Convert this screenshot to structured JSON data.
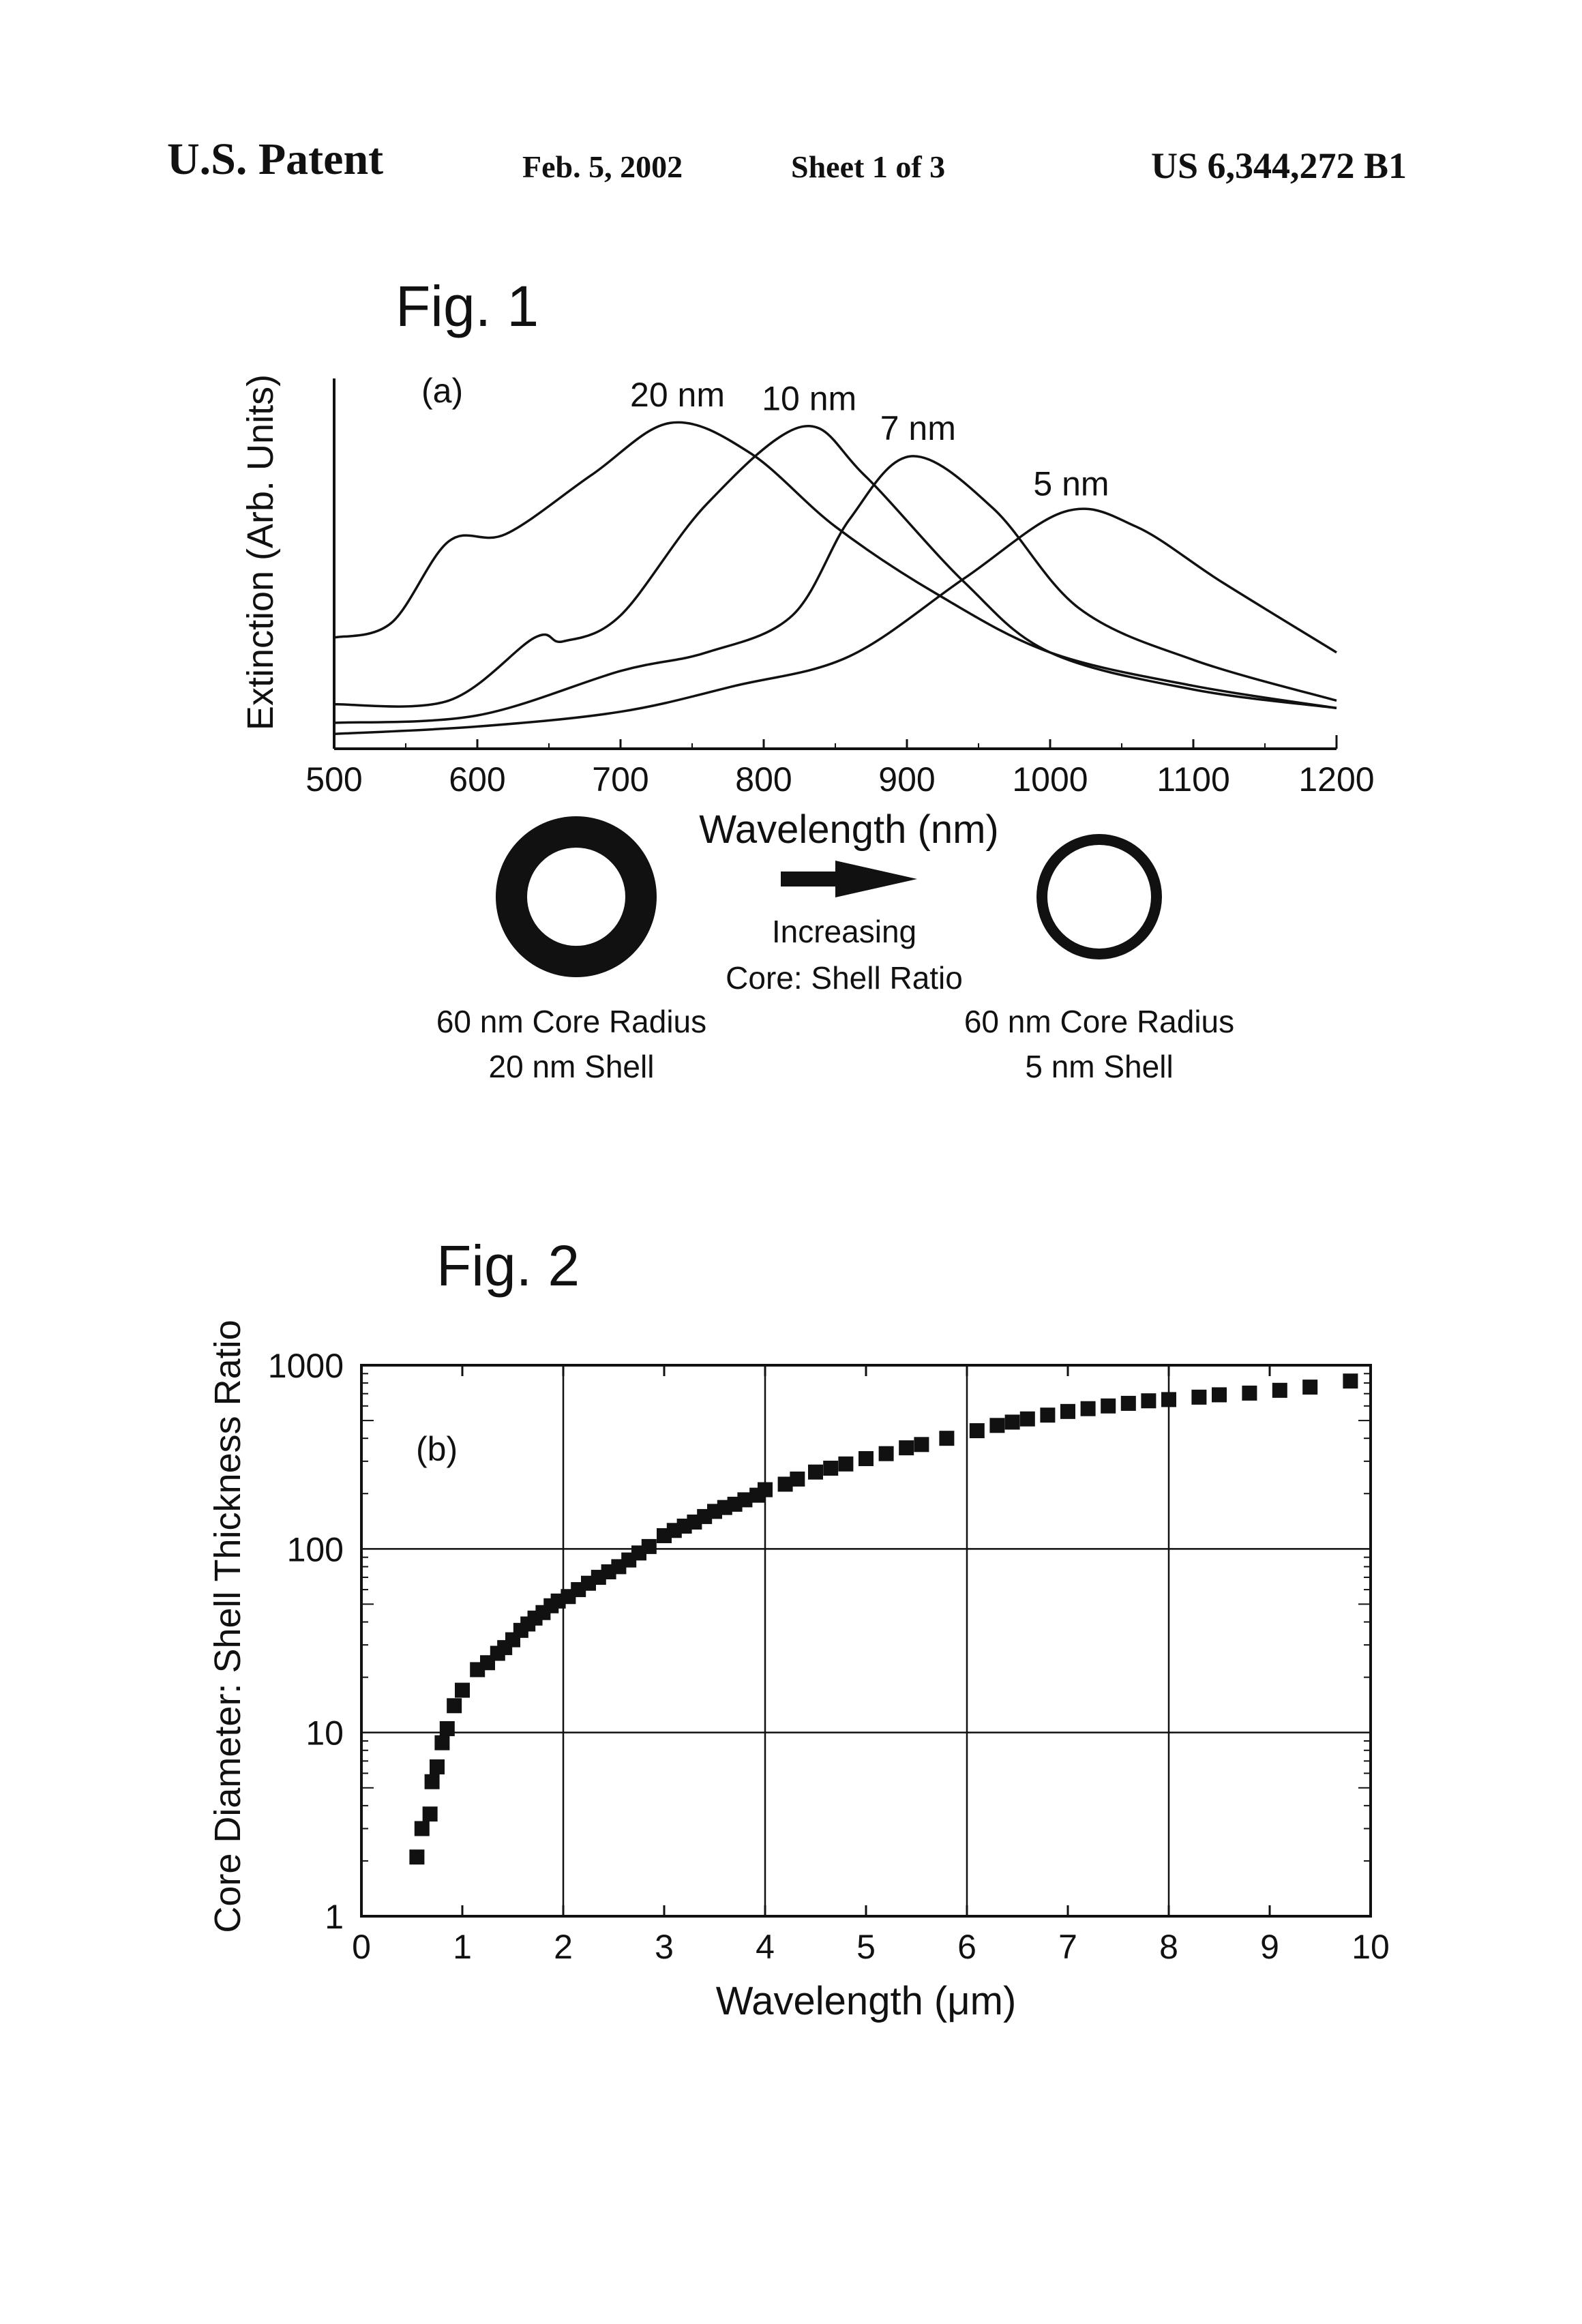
{
  "header": {
    "left": "U.S. Patent",
    "date": "Feb. 5, 2002",
    "sheet": "Sheet 1 of 3",
    "number": "US 6,344,272 B1"
  },
  "figures": {
    "fig1": {
      "title": "Fig. 1",
      "panel": "(a)",
      "xlabel": "Wavelength (nm)",
      "ylabel": "Extinction (Arb. Units)",
      "arrow_text_1": "Increasing",
      "arrow_text_2": "Core: Shell Ratio",
      "left_caption_1": "60 nm Core Radius",
      "left_caption_2": "20 nm Shell",
      "right_caption_1": "60 nm Core Radius",
      "right_caption_2": "5 nm Shell"
    },
    "fig2": {
      "title": "Fig. 2",
      "panel": "(b)",
      "xlabel": "Wavelength (μm)",
      "ylabel": "Core Diameter: Shell Thickness Ratio"
    }
  },
  "chart_data": [
    {
      "type": "line",
      "title": "Fig. 1",
      "xlabel": "Wavelength (nm)",
      "ylabel": "Extinction (Arb. Units)",
      "xlim": [
        500,
        1200
      ],
      "ylim": [
        0,
        1
      ],
      "xticks": [
        "500",
        "600",
        "700",
        "800",
        "900",
        "1000",
        "1100",
        "1200"
      ],
      "series": [
        {
          "name": "20 nm",
          "points": [
            [
              500,
              0.3
            ],
            [
              540,
              0.34
            ],
            [
              580,
              0.56
            ],
            [
              620,
              0.58
            ],
            [
              680,
              0.74
            ],
            [
              735,
              0.88
            ],
            [
              790,
              0.8
            ],
            [
              850,
              0.6
            ],
            [
              920,
              0.42
            ],
            [
              1000,
              0.26
            ],
            [
              1100,
              0.17
            ],
            [
              1200,
              0.11
            ]
          ]
        },
        {
          "name": "10 nm",
          "points": [
            [
              500,
              0.12
            ],
            [
              580,
              0.13
            ],
            [
              640,
              0.3
            ],
            [
              660,
              0.29
            ],
            [
              700,
              0.36
            ],
            [
              760,
              0.66
            ],
            [
              827,
              0.87
            ],
            [
              870,
              0.74
            ],
            [
              940,
              0.45
            ],
            [
              1000,
              0.26
            ],
            [
              1100,
              0.16
            ],
            [
              1200,
              0.11
            ]
          ]
        },
        {
          "name": "7 nm",
          "points": [
            [
              500,
              0.07
            ],
            [
              600,
              0.09
            ],
            [
              700,
              0.21
            ],
            [
              760,
              0.26
            ],
            [
              820,
              0.36
            ],
            [
              860,
              0.62
            ],
            [
              903,
              0.79
            ],
            [
              960,
              0.65
            ],
            [
              1020,
              0.38
            ],
            [
              1100,
              0.24
            ],
            [
              1200,
              0.13
            ]
          ]
        },
        {
          "name": "5 nm",
          "points": [
            [
              500,
              0.04
            ],
            [
              600,
              0.06
            ],
            [
              700,
              0.1
            ],
            [
              780,
              0.17
            ],
            [
              860,
              0.25
            ],
            [
              940,
              0.46
            ],
            [
              1010,
              0.64
            ],
            [
              1060,
              0.6
            ],
            [
              1120,
              0.45
            ],
            [
              1200,
              0.26
            ]
          ]
        }
      ]
    },
    {
      "type": "scatter",
      "title": "Fig. 2",
      "xlabel": "Wavelength (μm)",
      "ylabel": "Core Diameter: Shell Thickness Ratio",
      "xlim": [
        0,
        10
      ],
      "ylim": [
        1,
        1000
      ],
      "yscale": "log",
      "grid": true,
      "xticks": [
        "0",
        "1",
        "2",
        "3",
        "4",
        "5",
        "6",
        "7",
        "8",
        "9",
        "10"
      ],
      "yticks": [
        "1",
        "10",
        "100",
        "1000"
      ],
      "x": [
        0.55,
        0.6,
        0.68,
        0.7,
        0.75,
        0.8,
        0.85,
        0.92,
        1.0,
        1.15,
        1.25,
        1.35,
        1.42,
        1.5,
        1.58,
        1.65,
        1.72,
        1.8,
        1.88,
        1.95,
        2.05,
        2.15,
        2.25,
        2.35,
        2.45,
        2.55,
        2.65,
        2.75,
        2.85,
        3.0,
        3.1,
        3.2,
        3.3,
        3.4,
        3.5,
        3.6,
        3.7,
        3.8,
        3.92,
        4.0,
        4.2,
        4.32,
        4.5,
        4.65,
        4.8,
        5.0,
        5.2,
        5.4,
        5.55,
        5.8,
        6.1,
        6.3,
        6.45,
        6.6,
        6.8,
        7.0,
        7.2,
        7.4,
        7.6,
        7.8,
        8.0,
        8.3,
        8.5,
        8.8,
        9.1,
        9.4,
        9.8
      ],
      "y": [
        2.1,
        3.0,
        3.6,
        5.4,
        6.5,
        8.8,
        10.5,
        14,
        17,
        22,
        24,
        27,
        29,
        32,
        36,
        39,
        42,
        45,
        49,
        52,
        55,
        60,
        65,
        70,
        75,
        80,
        87,
        95,
        103,
        118,
        126,
        133,
        140,
        150,
        160,
        168,
        175,
        185,
        196,
        210,
        225,
        240,
        262,
        275,
        290,
        310,
        330,
        355,
        370,
        400,
        440,
        470,
        490,
        510,
        535,
        560,
        580,
        600,
        620,
        640,
        650,
        670,
        690,
        705,
        730,
        760,
        820
      ]
    }
  ]
}
